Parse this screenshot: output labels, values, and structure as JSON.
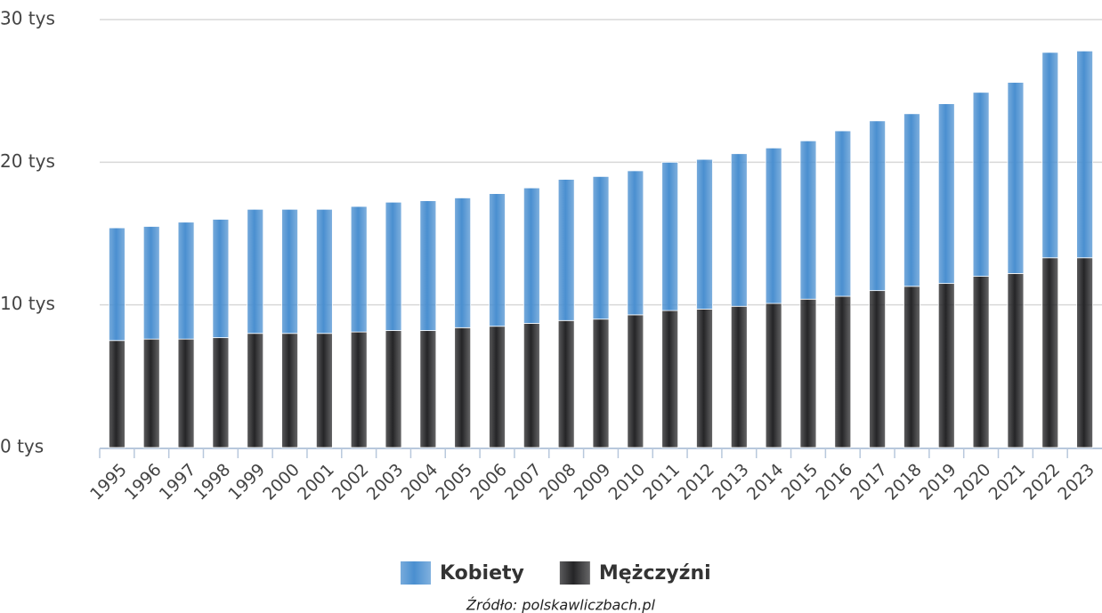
{
  "chart_data": {
    "type": "stacked_bar",
    "categories": [
      "1995",
      "1996",
      "1997",
      "1998",
      "1999",
      "2000",
      "2001",
      "2002",
      "2003",
      "2004",
      "2005",
      "2006",
      "2007",
      "2008",
      "2009",
      "2010",
      "2011",
      "2012",
      "2013",
      "2014",
      "2015",
      "2016",
      "2017",
      "2018",
      "2019",
      "2020",
      "2021",
      "2022",
      "2023"
    ],
    "series": [
      {
        "name": "Kobiety",
        "color": "#4a8fd0",
        "values": [
          7900,
          7900,
          8200,
          8300,
          8700,
          8700,
          8700,
          8800,
          9000,
          9100,
          9100,
          9300,
          9500,
          9900,
          10000,
          10100,
          10400,
          10500,
          10700,
          10900,
          11100,
          11600,
          11900,
          12100,
          12600,
          12900,
          13400,
          14400,
          14500
        ]
      },
      {
        "name": "Mężczyźni",
        "color": "#252527",
        "values": [
          7500,
          7600,
          7600,
          7700,
          8000,
          8000,
          8000,
          8100,
          8200,
          8200,
          8400,
          8500,
          8700,
          8900,
          9000,
          9300,
          9600,
          9700,
          9900,
          10100,
          10400,
          10600,
          11000,
          11300,
          11500,
          12000,
          12200,
          13300,
          13300
        ]
      }
    ],
    "ylim": [
      0,
      30000
    ],
    "yticks": [
      {
        "value": 0,
        "label": "0 tys"
      },
      {
        "value": 10000,
        "label": "10 tys"
      },
      {
        "value": 20000,
        "label": "20 tys"
      },
      {
        "value": 30000,
        "label": "30 tys"
      }
    ],
    "grid": true,
    "legend": "bottom",
    "source": "Źródło: polskawliczbach.pl"
  }
}
